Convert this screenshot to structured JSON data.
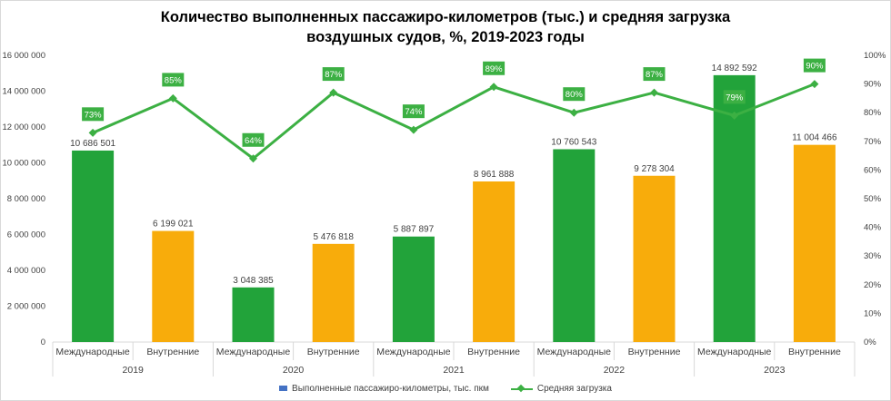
{
  "chart_data": {
    "type": "bar",
    "title_lines": [
      "Количество выполненных пассажиро-километров (тыс.) и средняя загрузка",
      "воздушных судов, %, 2019-2023 годы"
    ],
    "years": [
      "2019",
      "2020",
      "2021",
      "2022",
      "2023"
    ],
    "categories": [
      "Международные",
      "Внутренние",
      "Международные",
      "Внутренние",
      "Международные",
      "Внутренние",
      "Международные",
      "Внутренние",
      "Международные",
      "Внутренние"
    ],
    "left_ticks": [
      "0",
      "2 000 000",
      "4 000 000",
      "6 000 000",
      "8 000 000",
      "10 000 000",
      "12 000 000",
      "14 000 000",
      "16 000 000"
    ],
    "right_ticks": [
      "0%",
      "10%",
      "20%",
      "30%",
      "40%",
      "50%",
      "60%",
      "70%",
      "80%",
      "90%",
      "100%"
    ],
    "ylim": [
      0,
      16000000
    ],
    "y2lim": [
      0,
      100
    ],
    "series": [
      {
        "name": "Выполненные пассажиро-километры, тыс. пкм",
        "type": "bar",
        "values": [
          10686501,
          6199021,
          3048385,
          5476818,
          5887897,
          8961888,
          10760543,
          9278304,
          14892592,
          11004466
        ],
        "labels": [
          "10 686 501",
          "6 199 021",
          "3 048 385",
          "5 476 818",
          "5 887 897",
          "8 961 888",
          "10 760 543",
          "9 278 304",
          "14 892 592",
          "11 004 466"
        ]
      },
      {
        "name": "Средняя загрузка",
        "type": "line",
        "axis": "right",
        "values": [
          73,
          85,
          64,
          87,
          74,
          89,
          80,
          87,
          79,
          90
        ],
        "labels": [
          "73%",
          "85%",
          "64%",
          "87%",
          "74%",
          "89%",
          "80%",
          "87%",
          "79%",
          "90%"
        ]
      }
    ],
    "colors": {
      "international": "#22a33a",
      "domestic": "#f8ac0b",
      "line": "#3cb043",
      "label_box": "#3cb043",
      "legend_bar": "#4472c4",
      "gridline": "#d9d9d9"
    },
    "legend_position": "bottom",
    "grid": false
  }
}
